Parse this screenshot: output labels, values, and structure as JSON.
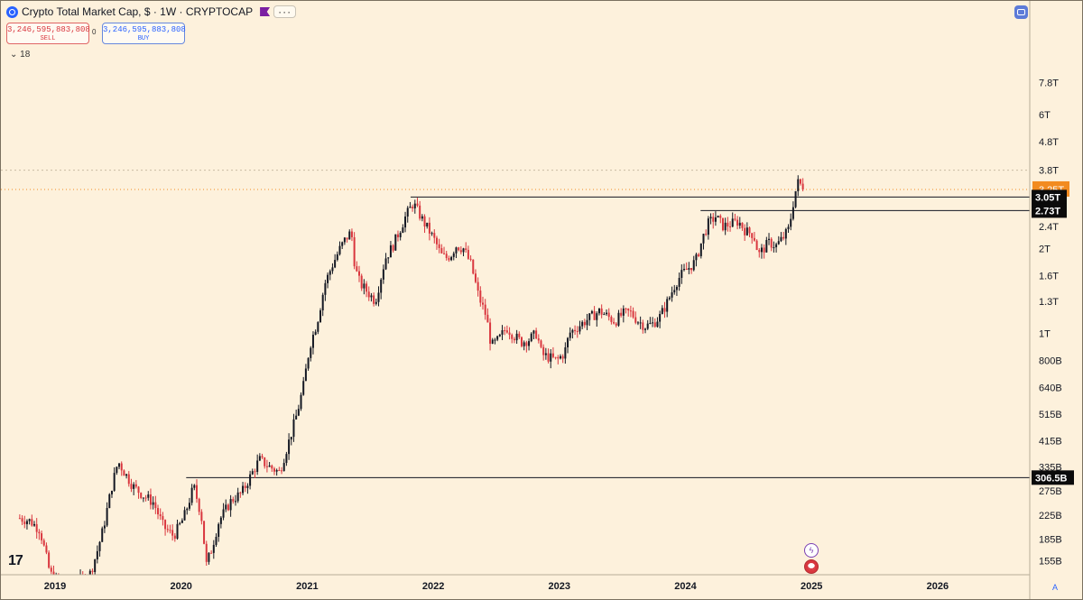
{
  "header": {
    "title": "Crypto Total Market Cap, $ · 1W · CRYPTOCAP",
    "sell_price": "3,246,595,883,808",
    "sell_label": "SELL",
    "buy_price": "3,246,595,883,808",
    "buy_label": "BUY",
    "spread": "0",
    "indicator_label": "18",
    "more_icon": "···"
  },
  "logo": "17",
  "colors": {
    "background": "#fdf1dc",
    "up": "#131722",
    "down": "#d9363e",
    "line": "#131722",
    "current_price": "#f28b20"
  },
  "chart_data": {
    "type": "candlestick",
    "title": "Crypto Total Market Cap, $ · 1W · CRYPTOCAP",
    "x_ticks": [
      "2019",
      "2020",
      "2021",
      "2022",
      "2023",
      "2024",
      "2025",
      "2026"
    ],
    "y_ticks": [
      "7.8T",
      "6T",
      "4.8T",
      "3.8T",
      "3.25T",
      "2.4T",
      "2T",
      "1.6T",
      "1.3T",
      "1T",
      "800B",
      "640B",
      "515B",
      "415B",
      "335B",
      "275B",
      "225B",
      "185B",
      "155B"
    ],
    "y_scale": "log",
    "xlim": [
      2018.72,
      2026.52
    ],
    "ylim_bn": [
      140,
      8300
    ],
    "current_price": {
      "label": "3.25T",
      "value_bn": 3246.6
    },
    "horizontal_levels": [
      {
        "label": "3.05T",
        "value_bn": 3050,
        "from_year": 2021.82
      },
      {
        "label": "2.73T",
        "value_bn": 2730,
        "from_year": 2024.12
      },
      {
        "label": "306.5B",
        "value_bn": 306.5,
        "from_year": 2020.04
      }
    ],
    "price_path_bn": [
      [
        2018.72,
        220
      ],
      [
        2018.8,
        215
      ],
      [
        2018.88,
        200
      ],
      [
        2018.96,
        140
      ],
      [
        2019.06,
        125
      ],
      [
        2019.18,
        130
      ],
      [
        2019.28,
        140
      ],
      [
        2019.33,
        165
      ],
      [
        2019.38,
        200
      ],
      [
        2019.45,
        285
      ],
      [
        2019.5,
        350
      ],
      [
        2019.55,
        320
      ],
      [
        2019.62,
        285
      ],
      [
        2019.7,
        265
      ],
      [
        2019.78,
        250
      ],
      [
        2019.86,
        205
      ],
      [
        2019.94,
        190
      ],
      [
        2020.02,
        220
      ],
      [
        2020.1,
        285
      ],
      [
        2020.16,
        225
      ],
      [
        2020.2,
        150
      ],
      [
        2020.24,
        170
      ],
      [
        2020.3,
        215
      ],
      [
        2020.4,
        255
      ],
      [
        2020.48,
        270
      ],
      [
        2020.55,
        310
      ],
      [
        2020.62,
        355
      ],
      [
        2020.7,
        335
      ],
      [
        2020.78,
        320
      ],
      [
        2020.86,
        420
      ],
      [
        2020.92,
        520
      ],
      [
        2020.97,
        650
      ],
      [
        2021.02,
        900
      ],
      [
        2021.08,
        1100
      ],
      [
        2021.14,
        1500
      ],
      [
        2021.2,
        1750
      ],
      [
        2021.26,
        2000
      ],
      [
        2021.3,
        2150
      ],
      [
        2021.35,
        2300
      ],
      [
        2021.38,
        1700
      ],
      [
        2021.42,
        1500
      ],
      [
        2021.48,
        1400
      ],
      [
        2021.54,
        1300
      ],
      [
        2021.58,
        1550
      ],
      [
        2021.62,
        1850
      ],
      [
        2021.68,
        2050
      ],
      [
        2021.72,
        2250
      ],
      [
        2021.78,
        2600
      ],
      [
        2021.84,
        2900
      ],
      [
        2021.88,
        2700
      ],
      [
        2021.92,
        2500
      ],
      [
        2021.97,
        2300
      ],
      [
        2022.02,
        2100
      ],
      [
        2022.06,
        1900
      ],
      [
        2022.1,
        1850
      ],
      [
        2022.14,
        1900
      ],
      [
        2022.18,
        2050
      ],
      [
        2022.24,
        2000
      ],
      [
        2022.3,
        1750
      ],
      [
        2022.36,
        1350
      ],
      [
        2022.42,
        1150
      ],
      [
        2022.46,
        900
      ],
      [
        2022.52,
        950
      ],
      [
        2022.58,
        1050
      ],
      [
        2022.64,
        980
      ],
      [
        2022.7,
        930
      ],
      [
        2022.76,
        950
      ],
      [
        2022.82,
        1000
      ],
      [
        2022.86,
        840
      ],
      [
        2022.92,
        820
      ],
      [
        2022.98,
        800
      ],
      [
        2023.04,
        850
      ],
      [
        2023.08,
        1000
      ],
      [
        2023.14,
        1050
      ],
      [
        2023.2,
        1100
      ],
      [
        2023.26,
        1150
      ],
      [
        2023.32,
        1200
      ],
      [
        2023.38,
        1150
      ],
      [
        2023.44,
        1100
      ],
      [
        2023.5,
        1170
      ],
      [
        2023.56,
        1190
      ],
      [
        2023.62,
        1110
      ],
      [
        2023.68,
        1060
      ],
      [
        2023.74,
        1080
      ],
      [
        2023.8,
        1150
      ],
      [
        2023.86,
        1300
      ],
      [
        2023.92,
        1500
      ],
      [
        2023.96,
        1600
      ],
      [
        2024.02,
        1700
      ],
      [
        2024.08,
        1800
      ],
      [
        2024.14,
        2200
      ],
      [
        2024.18,
        2450
      ],
      [
        2024.24,
        2600
      ],
      [
        2024.3,
        2400
      ],
      [
        2024.36,
        2450
      ],
      [
        2024.42,
        2500
      ],
      [
        2024.48,
        2300
      ],
      [
        2024.54,
        2250
      ],
      [
        2024.58,
        1900
      ],
      [
        2024.62,
        2000
      ],
      [
        2024.66,
        2100
      ],
      [
        2024.72,
        2050
      ],
      [
        2024.78,
        2200
      ],
      [
        2024.82,
        2350
      ],
      [
        2024.86,
        3000
      ],
      [
        2024.88,
        3300
      ],
      [
        2024.9,
        3500
      ],
      [
        2024.92,
        3300
      ],
      [
        2024.95,
        3246.6
      ]
    ]
  }
}
